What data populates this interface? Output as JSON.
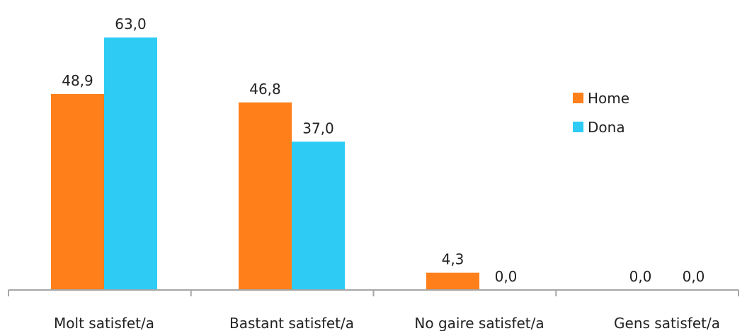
{
  "chart_data": {
    "type": "bar",
    "categories": [
      "Molt satisfet/a",
      "Bastant satisfet/a",
      "No gaire satisfet/a",
      "Gens satisfet/a"
    ],
    "series": [
      {
        "name": "Home",
        "color": "#FF7F1A",
        "values": [
          48.9,
          46.8,
          4.3,
          0.0
        ],
        "labels": [
          "48,9",
          "46,8",
          "4,3",
          "0,0"
        ]
      },
      {
        "name": "Dona",
        "color": "#2ECCF5",
        "values": [
          63.0,
          37.0,
          0.0,
          0.0
        ],
        "labels": [
          "63,0",
          "37,0",
          "0,0",
          "0,0"
        ]
      }
    ],
    "ylim": [
      0,
      63
    ],
    "legend_position": "right",
    "grid": false,
    "axis_color": "#A6A6A6",
    "title": "",
    "xlabel": "",
    "ylabel": ""
  }
}
